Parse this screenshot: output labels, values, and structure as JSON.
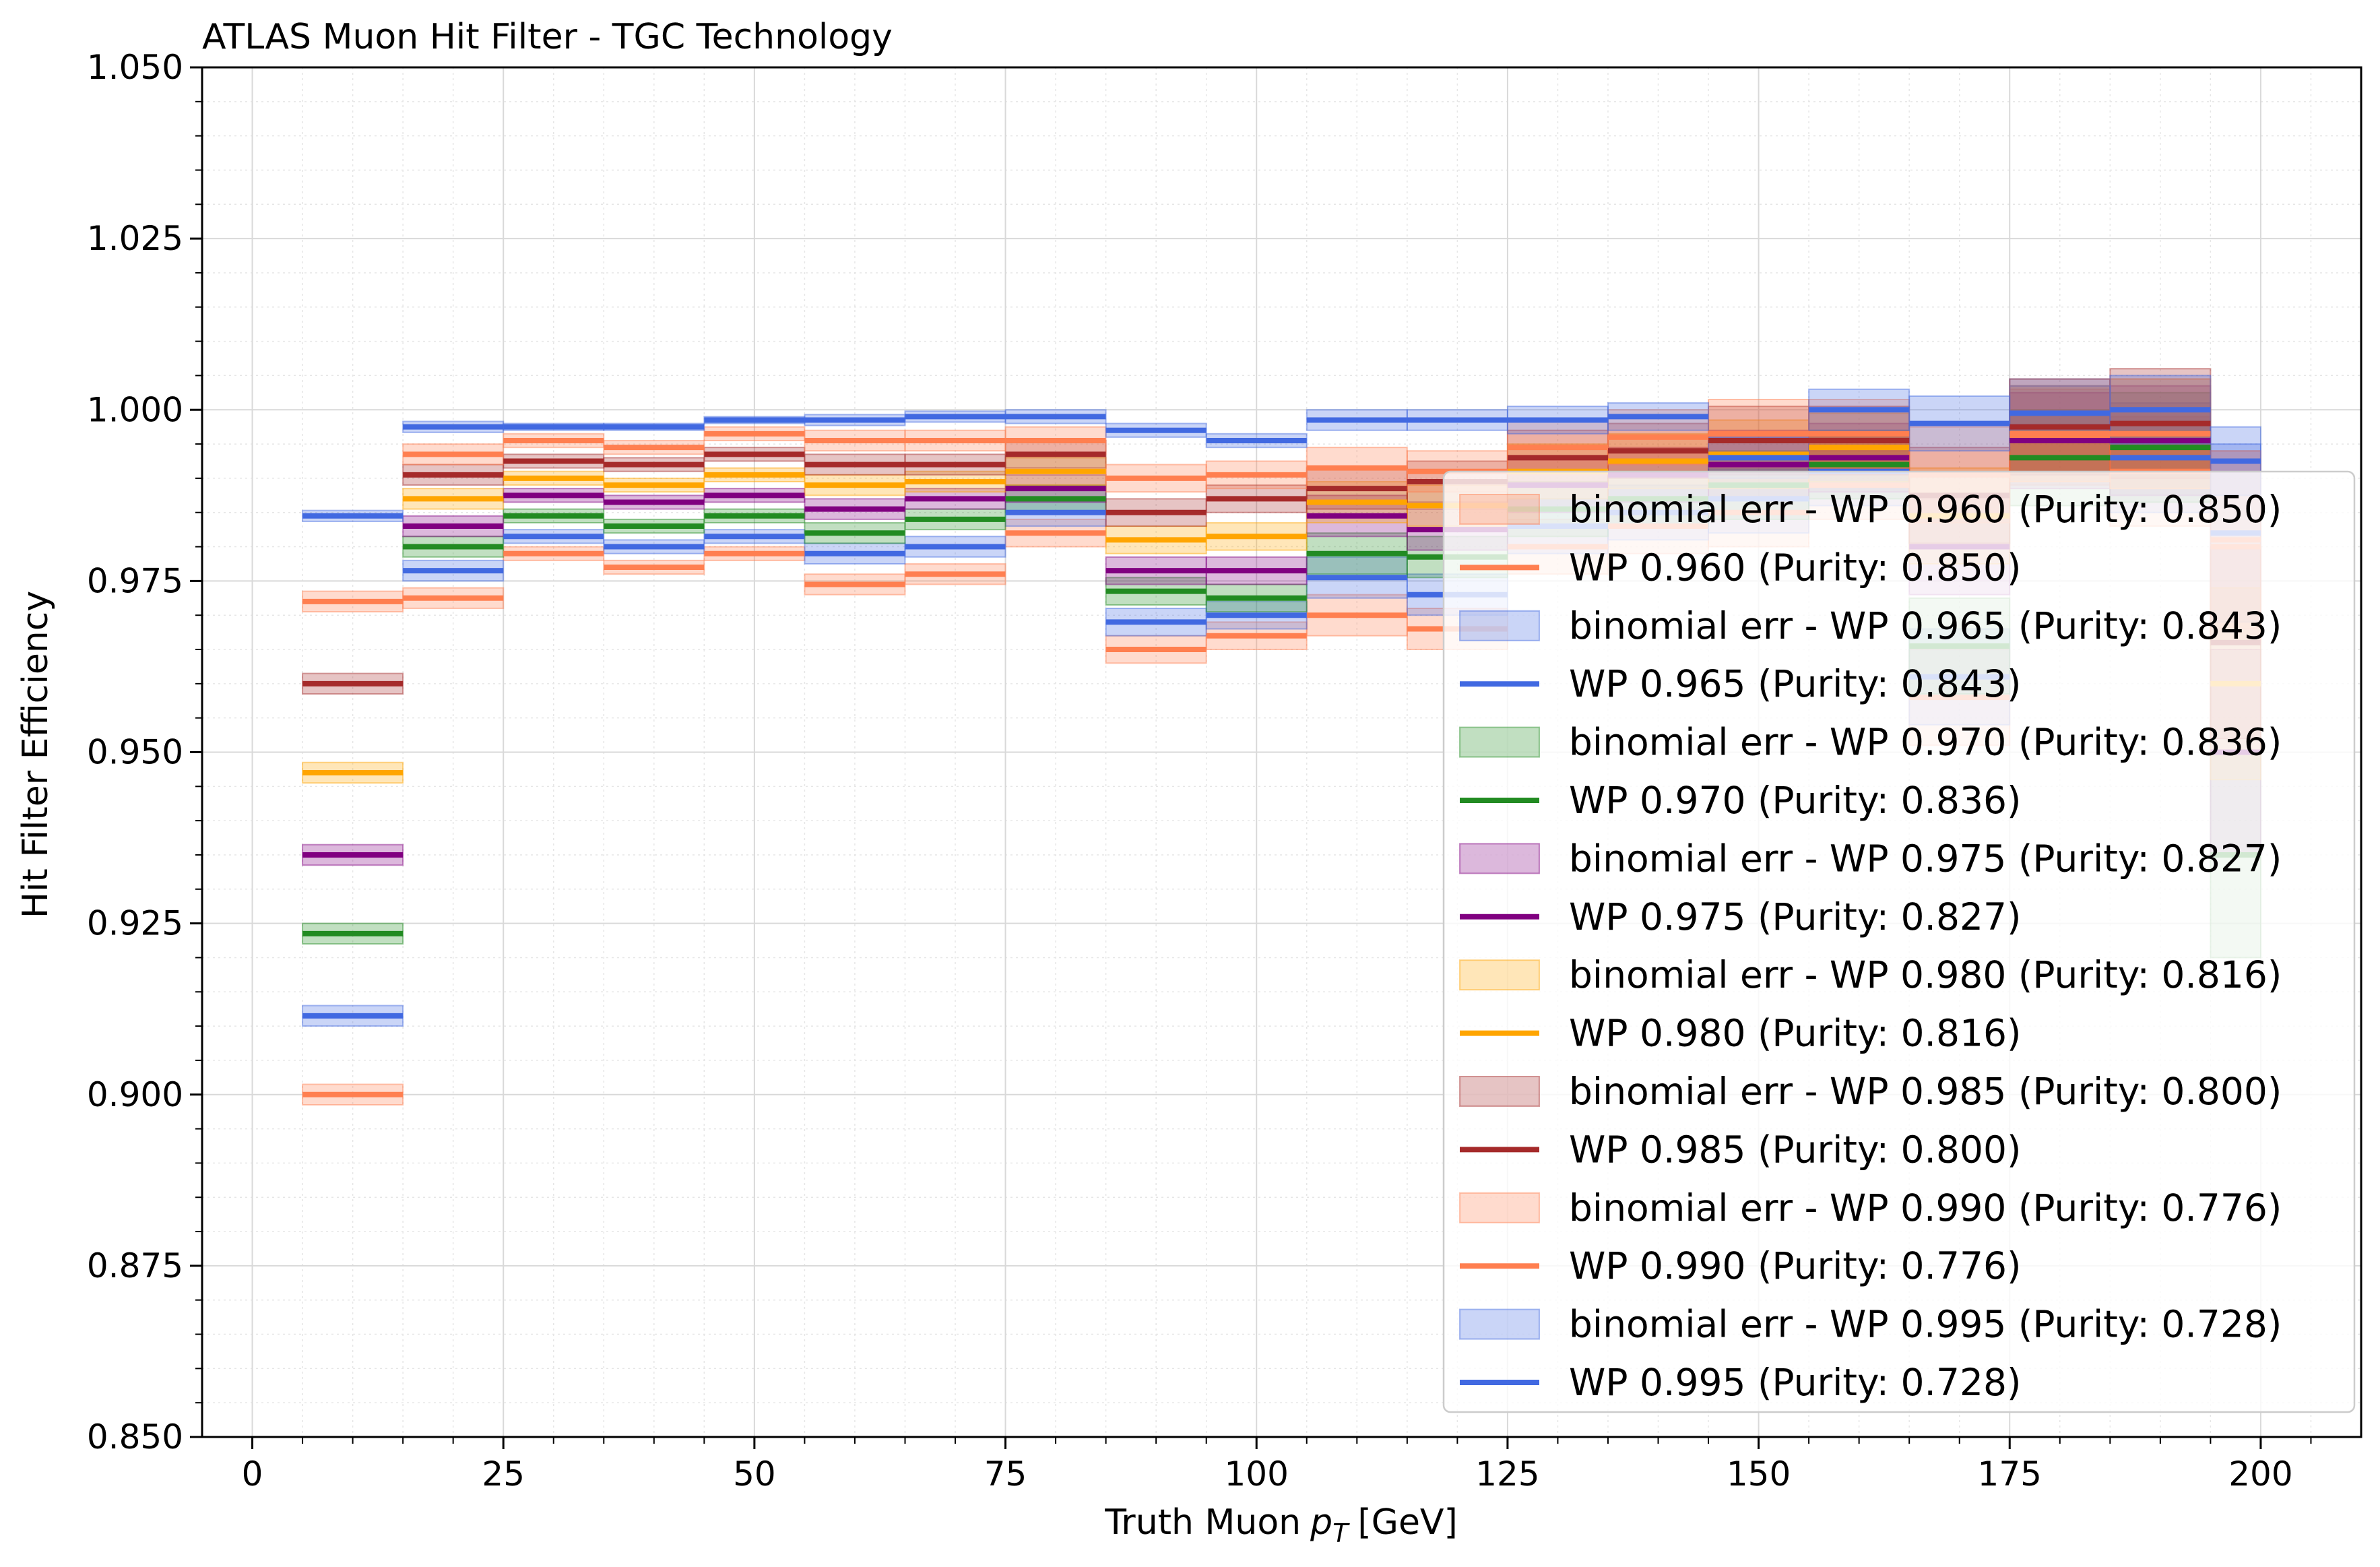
{
  "chart_data": {
    "type": "line",
    "title": "ATLAS Muon Hit Filter - TGC Technology",
    "xlabel": "Truth Muon",
    "xlabel_symbol": "p",
    "xlabel_subscript": "T",
    "xlabel_unit": "[GeV]",
    "ylabel": "Hit Filter Efficiency",
    "xlim": [
      -5,
      210
    ],
    "ylim": [
      0.85,
      1.05
    ],
    "x_ticks": [
      0,
      25,
      50,
      75,
      100,
      125,
      150,
      175,
      200
    ],
    "y_ticks": [
      0.85,
      0.875,
      0.9,
      0.925,
      0.95,
      0.975,
      1.0,
      1.025,
      1.05
    ],
    "x_tick_labels": [
      "0",
      "25",
      "50",
      "75",
      "100",
      "125",
      "150",
      "175",
      "200"
    ],
    "y_tick_labels": [
      "0.850",
      "0.875",
      "0.900",
      "0.925",
      "0.950",
      "0.975",
      "1.000",
      "1.025",
      "1.050"
    ],
    "grid": true,
    "legend_position": "lower-right",
    "bin_edges": [
      5,
      15,
      25,
      35,
      45,
      55,
      65,
      75,
      85,
      95,
      105,
      115,
      125,
      135,
      145,
      155,
      165,
      175,
      185,
      195,
      200
    ],
    "series": [
      {
        "name": "WP 0.960 (Purity: 0.850)",
        "err_label": "binomial err - WP 0.960 (Purity: 0.850)",
        "color": "#ff7f50",
        "values": [
          0.9,
          0.9725,
          0.979,
          0.977,
          0.979,
          0.9745,
          0.976,
          0.982,
          0.965,
          0.967,
          0.97,
          0.968,
          0.98,
          0.983,
          0.985,
          0.989,
          0.958,
          0.996,
          0.991,
          0.98
        ],
        "err": [
          0.0015,
          0.0015,
          0.001,
          0.001,
          0.001,
          0.0015,
          0.0015,
          0.002,
          0.002,
          0.002,
          0.003,
          0.003,
          0.004,
          0.004,
          0.005,
          0.005,
          0.007,
          0.007,
          0.008,
          0.014
        ]
      },
      {
        "name": "WP 0.965 (Purity: 0.843)",
        "err_label": "binomial err - WP 0.965 (Purity: 0.843)",
        "color": "#4169e1",
        "values": [
          0.9115,
          0.9765,
          0.9815,
          0.98,
          0.9815,
          0.979,
          0.98,
          0.985,
          0.969,
          0.97,
          0.9755,
          0.973,
          0.983,
          0.985,
          0.987,
          0.991,
          0.961,
          0.9975,
          0.993,
          0.982
        ],
        "err": [
          0.0015,
          0.0015,
          0.001,
          0.001,
          0.001,
          0.0015,
          0.0015,
          0.002,
          0.002,
          0.002,
          0.003,
          0.003,
          0.004,
          0.004,
          0.005,
          0.005,
          0.007,
          0.007,
          0.008,
          0.013
        ]
      },
      {
        "name": "WP 0.970 (Purity: 0.836)",
        "err_label": "binomial err - WP 0.970 (Purity: 0.836)",
        "color": "#228b22",
        "values": [
          0.9235,
          0.98,
          0.9845,
          0.983,
          0.9845,
          0.982,
          0.984,
          0.987,
          0.9735,
          0.9725,
          0.979,
          0.9785,
          0.9855,
          0.987,
          0.989,
          0.992,
          0.9655,
          0.993,
          0.9945,
          0.935
        ],
        "err": [
          0.0015,
          0.0015,
          0.001,
          0.001,
          0.001,
          0.0015,
          0.0015,
          0.002,
          0.002,
          0.002,
          0.003,
          0.003,
          0.004,
          0.004,
          0.005,
          0.005,
          0.007,
          0.007,
          0.008,
          0.015
        ]
      },
      {
        "name": "WP 0.975 (Purity: 0.827)",
        "err_label": "binomial err - WP 0.975 (Purity: 0.827)",
        "color": "#800080",
        "values": [
          0.935,
          0.983,
          0.9875,
          0.9865,
          0.9875,
          0.9855,
          0.987,
          0.9885,
          0.9765,
          0.9765,
          0.9845,
          0.9825,
          0.989,
          0.9905,
          0.992,
          0.993,
          0.98,
          0.9955,
          0.9955,
          0.95
        ],
        "err": [
          0.0015,
          0.0015,
          0.001,
          0.001,
          0.001,
          0.0015,
          0.0015,
          0.002,
          0.002,
          0.002,
          0.003,
          0.003,
          0.004,
          0.004,
          0.005,
          0.005,
          0.007,
          0.007,
          0.008,
          0.015
        ]
      },
      {
        "name": "WP 0.980 (Purity: 0.816)",
        "err_label": "binomial err - WP 0.980 (Purity: 0.816)",
        "color": "#ffa500",
        "values": [
          0.947,
          0.987,
          0.99,
          0.989,
          0.9905,
          0.989,
          0.9895,
          0.991,
          0.981,
          0.9815,
          0.9865,
          0.986,
          0.991,
          0.9925,
          0.9935,
          0.9945,
          0.9845,
          0.9965,
          0.9965,
          0.96
        ],
        "err": [
          0.0015,
          0.0015,
          0.001,
          0.001,
          0.001,
          0.0015,
          0.0015,
          0.002,
          0.002,
          0.002,
          0.003,
          0.003,
          0.004,
          0.004,
          0.005,
          0.005,
          0.007,
          0.007,
          0.008,
          0.014
        ]
      },
      {
        "name": "WP 0.985 (Purity: 0.800)",
        "err_label": "binomial err - WP 0.985 (Purity: 0.800)",
        "color": "#a52a2a",
        "values": [
          0.96,
          0.9905,
          0.9925,
          0.992,
          0.9935,
          0.992,
          0.992,
          0.9935,
          0.985,
          0.987,
          0.9885,
          0.9895,
          0.993,
          0.994,
          0.9955,
          0.9955,
          0.9875,
          0.9975,
          0.998,
          0.966
        ],
        "err": [
          0.0015,
          0.0015,
          0.001,
          0.001,
          0.001,
          0.0015,
          0.0015,
          0.002,
          0.002,
          0.002,
          0.003,
          0.003,
          0.004,
          0.004,
          0.005,
          0.005,
          0.007,
          0.007,
          0.008,
          0.014
        ]
      },
      {
        "name": "WP 0.990 (Purity: 0.776)",
        "err_label": "binomial err - WP 0.990 (Purity: 0.776)",
        "color": "#ff7f50",
        "values": [
          0.972,
          0.9935,
          0.9955,
          0.9945,
          0.9965,
          0.9955,
          0.9955,
          0.9955,
          0.99,
          0.9905,
          0.9915,
          0.991,
          0.9945,
          0.996,
          0.9965,
          0.9965,
          0.9905,
          0.9965,
          0.9965,
          0.981
        ],
        "err": [
          0.0015,
          0.0015,
          0.001,
          0.001,
          0.001,
          0.0015,
          0.0015,
          0.002,
          0.002,
          0.002,
          0.003,
          0.003,
          0.004,
          0.004,
          0.005,
          0.005,
          0.007,
          0.007,
          0.008,
          0.013
        ]
      },
      {
        "name": "WP 0.995 (Purity: 0.728)",
        "err_label": "binomial err - WP 0.995 (Purity: 0.728)",
        "color": "#4169e1",
        "values": [
          0.9845,
          0.9975,
          0.9975,
          0.9975,
          0.9985,
          0.9985,
          0.999,
          0.999,
          0.997,
          0.9955,
          0.9985,
          0.9985,
          0.9985,
          0.999,
          0.993,
          1.0,
          0.998,
          0.9995,
          1.0,
          0.9925
        ],
        "err": [
          0.0008,
          0.0008,
          0.0005,
          0.0005,
          0.0005,
          0.0008,
          0.0008,
          0.001,
          0.001,
          0.001,
          0.0015,
          0.0015,
          0.002,
          0.002,
          0.003,
          0.003,
          0.004,
          0.004,
          0.005,
          0.005
        ]
      }
    ]
  }
}
